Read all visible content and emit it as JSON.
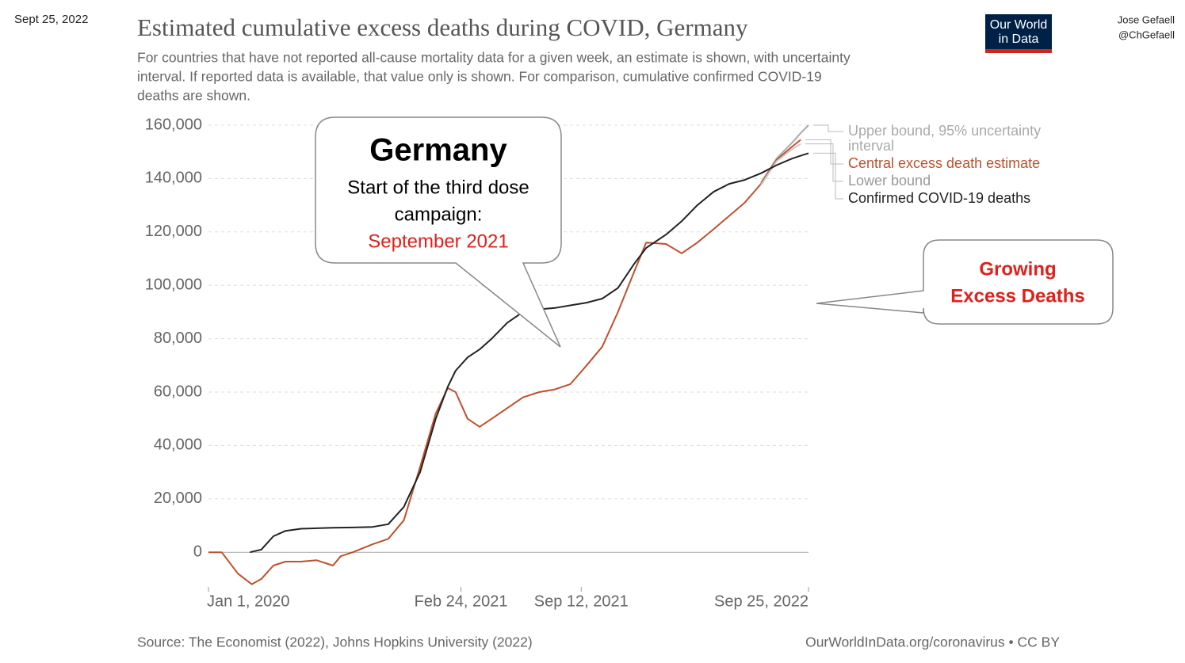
{
  "header": {
    "date": "Sept 25, 2022",
    "author": "Jose Gefaell",
    "handle": "@ChGefaell",
    "logo": [
      "Our World",
      "in Data"
    ]
  },
  "chart_data": {
    "type": "line",
    "title": "Estimated cumulative excess deaths during COVID, Germany",
    "subtitle": [
      "For countries that have not reported all-cause mortality data for a given week, an estimate is shown, with uncertainty",
      "interval. If reported data is available, that value only is shown. For comparison, cumulative confirmed COVID-19",
      "deaths are shown."
    ],
    "source": "Source: The Economist (2022), Johns Hopkins University (2022)",
    "credit": "OurWorldInData.org/coronavirus • CC BY",
    "xlim": [
      "2020-01-01",
      "2022-09-25"
    ],
    "xticks": [
      {
        "value": "2020-01-01",
        "label": "Jan 1, 2020"
      },
      {
        "value": "2021-02-24",
        "label": "Feb 24, 2021"
      },
      {
        "value": "2021-09-12",
        "label": "Sep 12, 2021"
      },
      {
        "value": "2022-09-25",
        "label": "Sep 25, 2022"
      }
    ],
    "ylim": [
      -13000,
      160000
    ],
    "yticks": [
      0,
      {
        "value": 20000,
        "label": "20,000"
      },
      {
        "value": 40000,
        "label": "40,000"
      },
      {
        "value": 60000,
        "label": "60,000"
      },
      {
        "value": 80000,
        "label": "80,000"
      },
      {
        "value": 100000,
        "label": "100,000"
      },
      {
        "value": 120000,
        "label": "120,000"
      },
      {
        "value": 140000,
        "label": "140,000"
      },
      {
        "value": 160000,
        "label": "160,000"
      }
    ],
    "grid": true,
    "series": [
      {
        "name": "Upper bound, 95% uncertainty interval",
        "color": "#aaaaaa",
        "x": [
          "2022-07-08",
          "2022-08-03",
          "2022-08-29",
          "2022-09-12",
          "2022-09-25"
        ],
        "values": [
          138500,
          147500,
          153500,
          157000,
          160000
        ]
      },
      {
        "name": "Central excess death estimate",
        "color": "#c0502b",
        "x": [
          "2020-01-01",
          "2020-01-23",
          "2020-02-19",
          "2020-03-13",
          "2020-03-29",
          "2020-04-18",
          "2020-05-08",
          "2020-06-03",
          "2020-06-29",
          "2020-07-26",
          "2020-08-08",
          "2020-08-28",
          "2020-09-30",
          "2020-10-26",
          "2020-11-21",
          "2020-12-18",
          "2021-01-13",
          "2021-02-02",
          "2021-02-15",
          "2021-03-07",
          "2021-03-27",
          "2021-04-16",
          "2021-05-12",
          "2021-06-07",
          "2021-07-04",
          "2021-07-30",
          "2021-08-25",
          "2021-09-21",
          "2021-10-17",
          "2021-11-12",
          "2021-12-09",
          "2021-12-29",
          "2022-01-31",
          "2022-02-26",
          "2022-03-24",
          "2022-04-20",
          "2022-05-16",
          "2022-06-11",
          "2022-07-08",
          "2022-08-03",
          "2022-08-29",
          "2022-09-12"
        ],
        "values": [
          0,
          0,
          -8000,
          -12000,
          -10000,
          -5000,
          -3500,
          -3500,
          -3000,
          -5000,
          -1500,
          0,
          3000,
          5000,
          12000,
          32000,
          52000,
          61500,
          60000,
          50000,
          47000,
          50000,
          54000,
          58000,
          60000,
          61000,
          63000,
          70000,
          77000,
          90000,
          105000,
          116000,
          115500,
          112000,
          116000,
          121000,
          126000,
          131000,
          138000,
          147000,
          152000,
          154500
        ]
      },
      {
        "name": "Lower bound",
        "color": "#cccccc",
        "x": [
          "2022-07-08",
          "2022-08-03",
          "2022-08-29",
          "2022-09-12"
        ],
        "values": [
          137500,
          146500,
          151000,
          153000
        ]
      },
      {
        "name": "Confirmed COVID-19 deaths",
        "color": "#222222",
        "x": [
          "2020-03-10",
          "2020-03-29",
          "2020-04-18",
          "2020-05-08",
          "2020-06-03",
          "2020-06-29",
          "2020-07-26",
          "2020-08-28",
          "2020-09-30",
          "2020-10-26",
          "2020-11-21",
          "2020-12-18",
          "2021-01-13",
          "2021-02-02",
          "2021-02-15",
          "2021-03-07",
          "2021-03-27",
          "2021-04-16",
          "2021-05-12",
          "2021-06-07",
          "2021-07-04",
          "2021-07-30",
          "2021-08-25",
          "2021-09-21",
          "2021-10-17",
          "2021-11-12",
          "2021-12-09",
          "2021-12-29",
          "2022-01-31",
          "2022-02-26",
          "2022-03-24",
          "2022-04-20",
          "2022-05-16",
          "2022-06-11",
          "2022-07-08",
          "2022-08-03",
          "2022-08-29",
          "2022-09-25"
        ],
        "values": [
          0,
          1000,
          6000,
          8000,
          8800,
          9000,
          9200,
          9300,
          9500,
          10500,
          17000,
          30000,
          50000,
          62000,
          68000,
          73000,
          76000,
          80000,
          86000,
          90000,
          91000,
          91500,
          92500,
          93500,
          95000,
          99000,
          108000,
          114000,
          119000,
          124000,
          130000,
          135000,
          138000,
          139500,
          142000,
          145000,
          147500,
          149500
        ]
      }
    ]
  },
  "annotations": {
    "dose": {
      "heading": "Germany",
      "lines": [
        "Start of the third dose",
        "campaign:"
      ],
      "highlight": "September 2021"
    },
    "excess": {
      "lines": [
        "Growing",
        "Excess Deaths"
      ]
    }
  }
}
